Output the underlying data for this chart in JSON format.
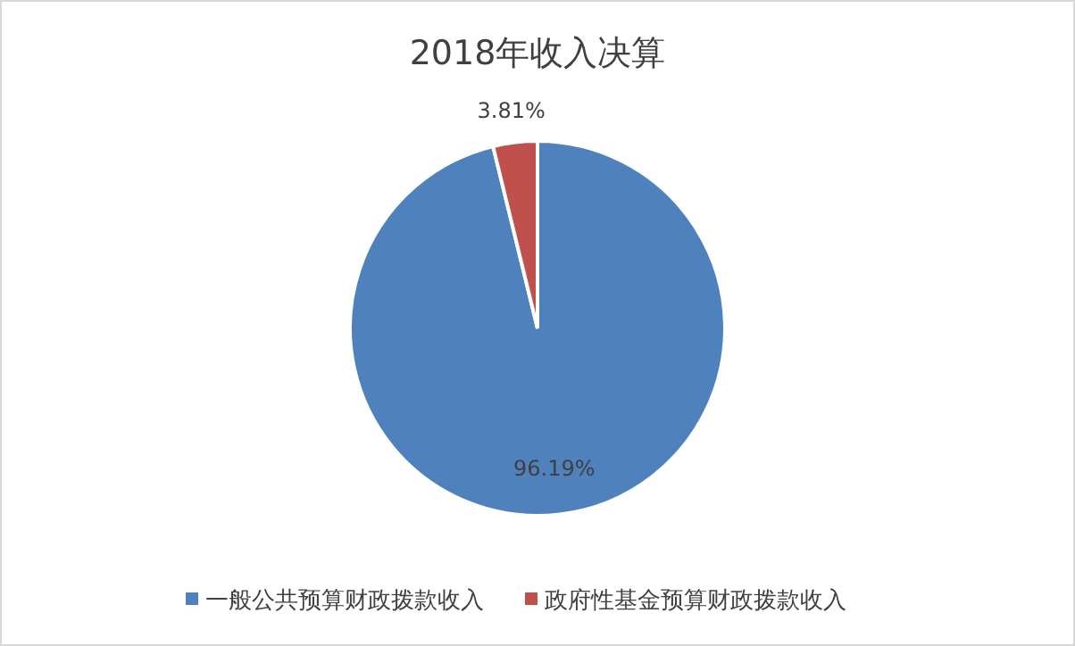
{
  "chart_data": {
    "type": "pie",
    "title": "2018年收入决算",
    "categories": [
      "一般公共预算财政拨款收入",
      "政府性基金预算财政拨款收入"
    ],
    "values": [
      96.19,
      3.81
    ],
    "colors": [
      "#4f81bd",
      "#c0504d"
    ],
    "value_labels": [
      "96.19%",
      "3.81%"
    ],
    "legend": "bottom"
  }
}
